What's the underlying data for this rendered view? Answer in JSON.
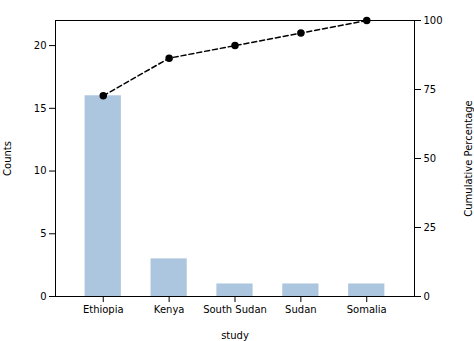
{
  "chart_data": {
    "type": "bar",
    "xlabel": "study",
    "ylabel": "Counts",
    "y2label": "Cumulative Percentage",
    "categories": [
      "Ethiopia",
      "Kenya",
      "South Sudan",
      "Sudan",
      "Somalia"
    ],
    "series": [
      {
        "type": "bar",
        "color": "#adc6e0",
        "values": [
          16,
          3,
          1,
          1,
          1
        ]
      },
      {
        "type": "line",
        "axis": "y2",
        "color": "black",
        "marker": "circle",
        "line_style": "dashed",
        "values": [
          72.73,
          86.36,
          90.91,
          95.45,
          100.0
        ]
      }
    ],
    "ylim": [
      0,
      22
    ],
    "yticks": [
      0,
      5,
      10,
      15,
      20
    ],
    "y2lim": [
      0,
      100
    ],
    "y2ticks": [
      0,
      25,
      50,
      75,
      100
    ]
  }
}
